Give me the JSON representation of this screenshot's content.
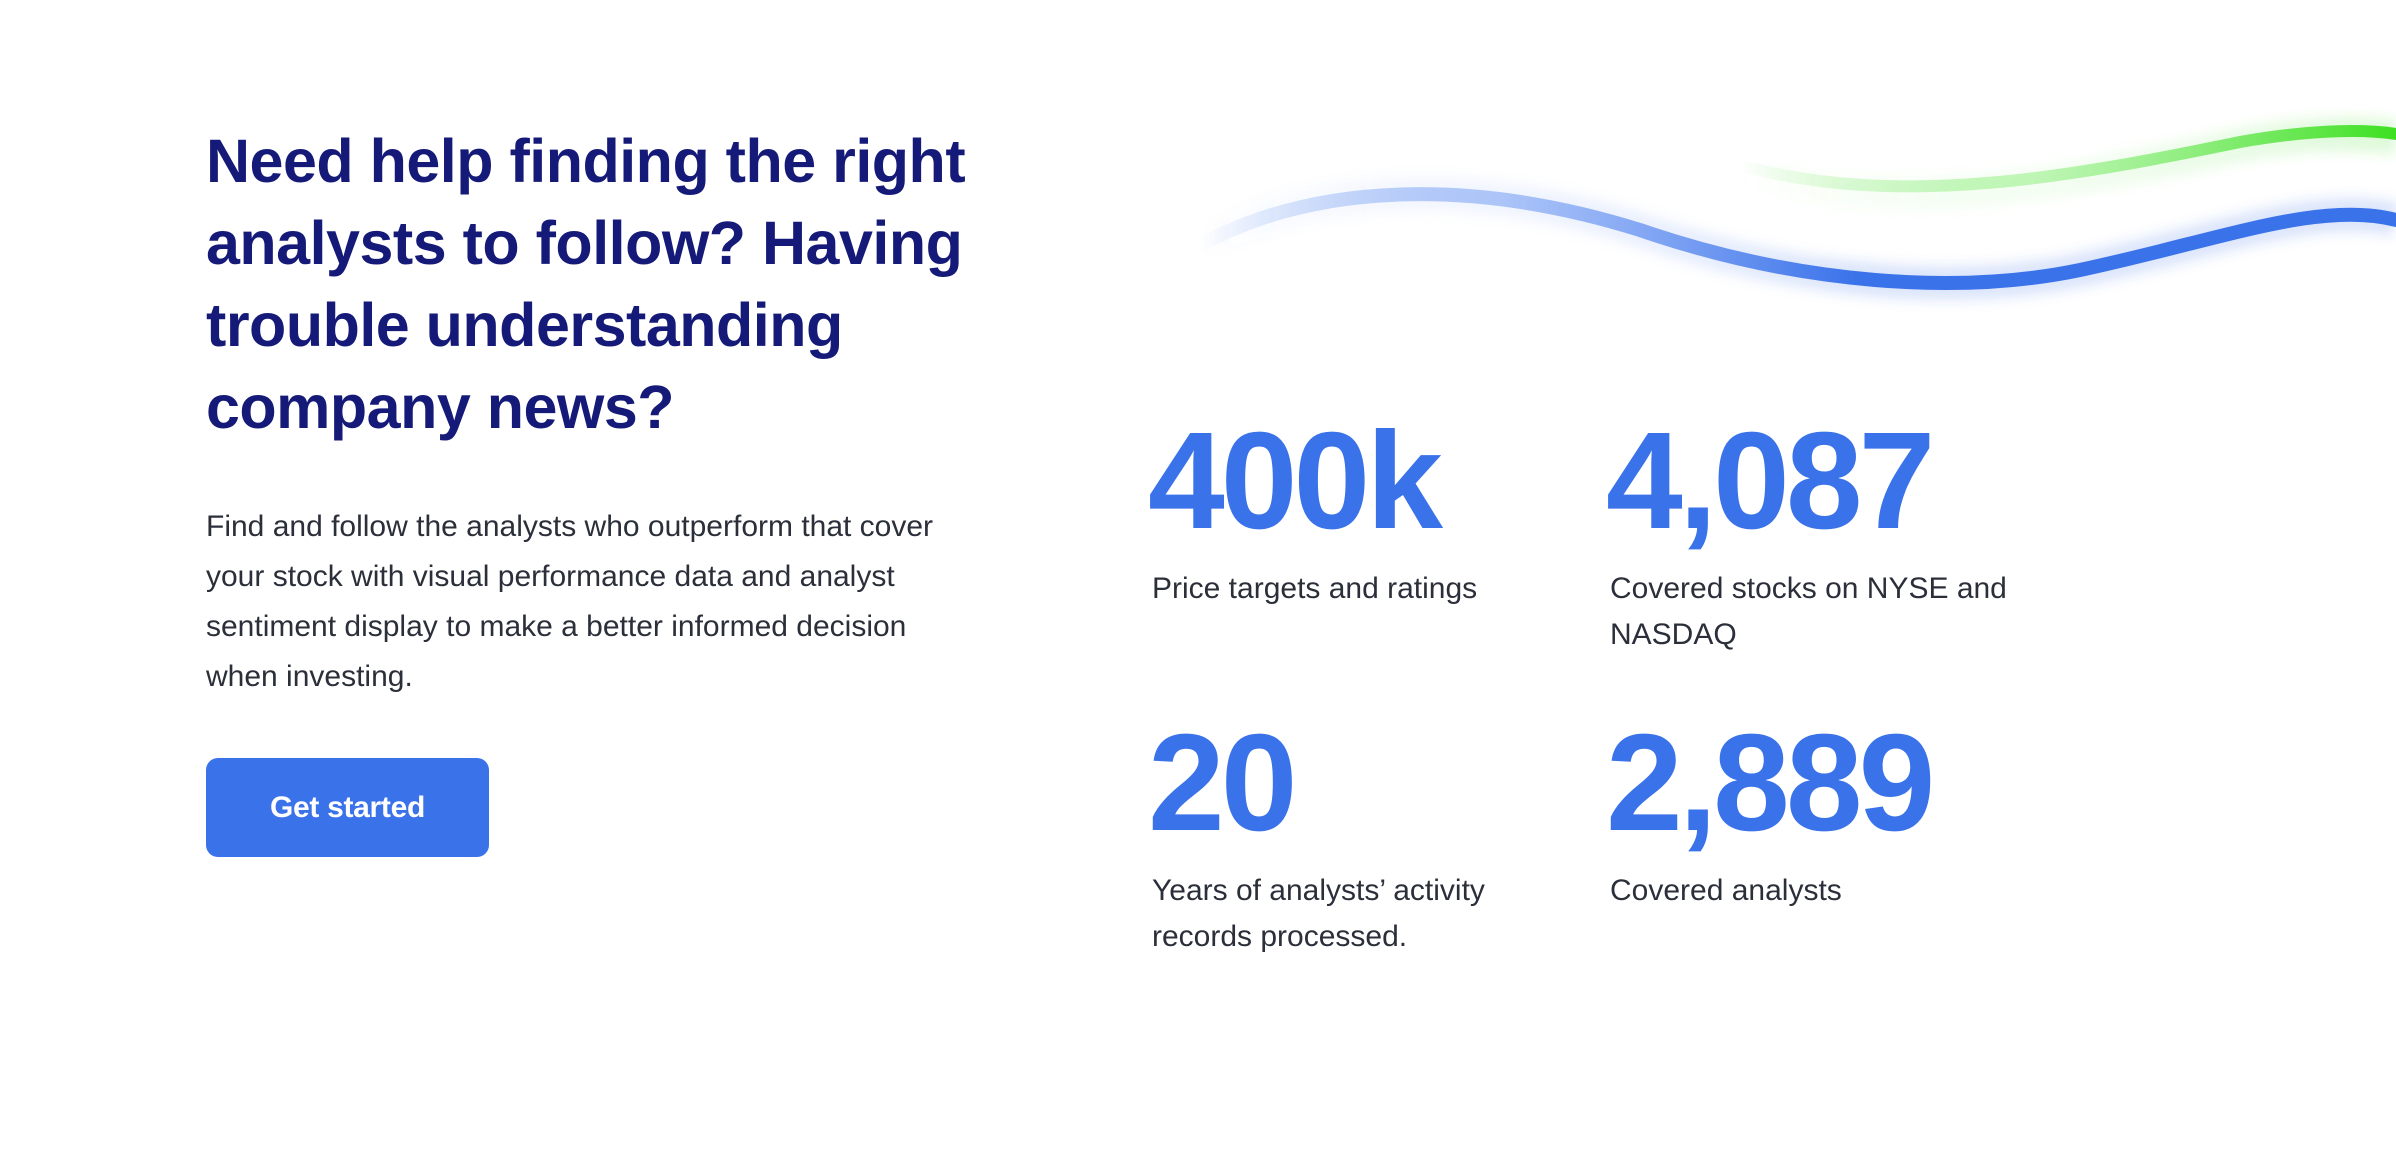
{
  "hero": {
    "headline": "Need help finding the right analysts to follow? Having trouble understanding company news?",
    "description": "Find and follow the analysts who outperform that cover your stock with visual performance data and analyst sentiment display to make a better informed decision when investing.",
    "cta_label": "Get started"
  },
  "stats": [
    {
      "value": "400k",
      "label": "Price targets and ratings"
    },
    {
      "value": "4,087",
      "label": "Covered stocks on NYSE and NASDAQ"
    },
    {
      "value": "20",
      "label": "Years of analysts’ activity records processed."
    },
    {
      "value": "2,889",
      "label": "Covered analysts"
    }
  ],
  "colors": {
    "headline": "#151a78",
    "accent_blue": "#3a72ea",
    "accent_green": "#3ee022",
    "body_text": "#2b2f3a",
    "background": "#ffffff"
  }
}
